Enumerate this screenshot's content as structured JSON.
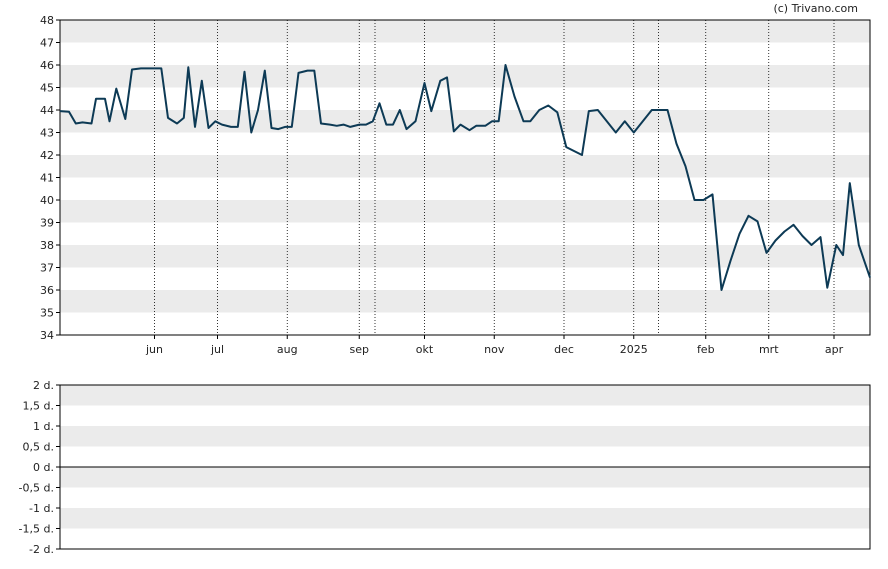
{
  "copyright": "(c) Trivano.com",
  "colors": {
    "line": "#0d3a55",
    "band": "#ebebeb",
    "axis": "#000000",
    "grid": "#000000"
  },
  "chart_data": [
    {
      "type": "line",
      "title": "",
      "xlabel": "",
      "ylabel": "",
      "ylim": [
        34,
        48
      ],
      "yticks": [
        "34",
        "35",
        "36",
        "37",
        "38",
        "39",
        "40",
        "41",
        "42",
        "43",
        "44",
        "45",
        "46",
        "47",
        "48"
      ],
      "xlim": [
        "2024-04-22",
        "2025-04-17"
      ],
      "x_tick_labels": [
        {
          "date": "2024-06-03",
          "label": "jun"
        },
        {
          "date": "2024-07-01",
          "label": "jul"
        },
        {
          "date": "2024-08-01",
          "label": "aug"
        },
        {
          "date": "2024-09-02",
          "label": "sep"
        },
        {
          "date": "2024-10-01",
          "label": "okt"
        },
        {
          "date": "2024-11-01",
          "label": "nov"
        },
        {
          "date": "2024-12-02",
          "label": "dec"
        },
        {
          "date": "2025-01-02",
          "label": "2025"
        },
        {
          "date": "2025-02-03",
          "label": "feb"
        },
        {
          "date": "2025-03-03",
          "label": "mrt"
        },
        {
          "date": "2025-04-01",
          "label": "apr"
        }
      ],
      "vlines": [
        "2024-06-03",
        "2024-07-01",
        "2024-08-01",
        "2024-09-02",
        "2024-09-09",
        "2024-10-01",
        "2024-11-01",
        "2024-12-02",
        "2025-01-02",
        "2025-01-13",
        "2025-02-03",
        "2025-03-03",
        "2025-04-01"
      ],
      "grid": "horizontal bands",
      "series": [
        {
          "points": [
            [
              "2024-04-22",
              43.95
            ],
            [
              "2024-04-26",
              43.92
            ],
            [
              "2024-04-29",
              43.4
            ],
            [
              "2024-05-02",
              43.45
            ],
            [
              "2024-05-06",
              43.4
            ],
            [
              "2024-05-08",
              44.5
            ],
            [
              "2024-05-12",
              44.5
            ],
            [
              "2024-05-14",
              43.5
            ],
            [
              "2024-05-17",
              44.95
            ],
            [
              "2024-05-21",
              43.6
            ],
            [
              "2024-05-24",
              45.8
            ],
            [
              "2024-05-28",
              45.85
            ],
            [
              "2024-05-31",
              45.85
            ],
            [
              "2024-06-03",
              45.85
            ],
            [
              "2024-06-06",
              45.85
            ],
            [
              "2024-06-09",
              43.65
            ],
            [
              "2024-06-13",
              43.4
            ],
            [
              "2024-06-16",
              43.65
            ],
            [
              "2024-06-18",
              45.9
            ],
            [
              "2024-06-21",
              43.25
            ],
            [
              "2024-06-24",
              45.3
            ],
            [
              "2024-06-27",
              43.2
            ],
            [
              "2024-06-30",
              43.5
            ],
            [
              "2024-07-03",
              43.35
            ],
            [
              "2024-07-07",
              43.25
            ],
            [
              "2024-07-10",
              43.25
            ],
            [
              "2024-07-13",
              45.7
            ],
            [
              "2024-07-16",
              43.0
            ],
            [
              "2024-07-19",
              44.0
            ],
            [
              "2024-07-22",
              45.75
            ],
            [
              "2024-07-25",
              43.2
            ],
            [
              "2024-07-28",
              43.15
            ],
            [
              "2024-07-31",
              43.25
            ],
            [
              "2024-08-03",
              43.25
            ],
            [
              "2024-08-06",
              45.65
            ],
            [
              "2024-08-10",
              45.75
            ],
            [
              "2024-08-13",
              45.75
            ],
            [
              "2024-08-16",
              43.4
            ],
            [
              "2024-08-20",
              43.35
            ],
            [
              "2024-08-23",
              43.3
            ],
            [
              "2024-08-26",
              43.35
            ],
            [
              "2024-08-29",
              43.25
            ],
            [
              "2024-09-02",
              43.35
            ],
            [
              "2024-09-05",
              43.35
            ],
            [
              "2024-09-08",
              43.5
            ],
            [
              "2024-09-11",
              44.3
            ],
            [
              "2024-09-14",
              43.35
            ],
            [
              "2024-09-17",
              43.35
            ],
            [
              "2024-09-20",
              44.0
            ],
            [
              "2024-09-23",
              43.15
            ],
            [
              "2024-09-27",
              43.5
            ],
            [
              "2024-10-01",
              45.2
            ],
            [
              "2024-10-04",
              43.95
            ],
            [
              "2024-10-08",
              45.3
            ],
            [
              "2024-10-11",
              45.45
            ],
            [
              "2024-10-14",
              43.05
            ],
            [
              "2024-10-17",
              43.35
            ],
            [
              "2024-10-21",
              43.1
            ],
            [
              "2024-10-24",
              43.3
            ],
            [
              "2024-10-28",
              43.3
            ],
            [
              "2024-10-31",
              43.5
            ],
            [
              "2024-11-03",
              43.5
            ],
            [
              "2024-11-06",
              46.0
            ],
            [
              "2024-11-10",
              44.6
            ],
            [
              "2024-11-14",
              43.5
            ],
            [
              "2024-11-17",
              43.5
            ],
            [
              "2024-11-21",
              44.0
            ],
            [
              "2024-11-25",
              44.2
            ],
            [
              "2024-11-29",
              43.9
            ],
            [
              "2024-12-03",
              42.35
            ],
            [
              "2024-12-06",
              42.2
            ],
            [
              "2024-12-10",
              42.0
            ],
            [
              "2024-12-13",
              43.95
            ],
            [
              "2024-12-17",
              44.0
            ],
            [
              "2024-12-21",
              43.5
            ],
            [
              "2024-12-25",
              43.0
            ],
            [
              "2024-12-29",
              43.5
            ],
            [
              "2025-01-02",
              43.0
            ],
            [
              "2025-01-06",
              43.5
            ],
            [
              "2025-01-10",
              44.0
            ],
            [
              "2025-01-14",
              44.0
            ],
            [
              "2025-01-17",
              44.0
            ],
            [
              "2025-01-21",
              42.5
            ],
            [
              "2025-01-25",
              41.5
            ],
            [
              "2025-01-29",
              40.0
            ],
            [
              "2025-02-02",
              40.0
            ],
            [
              "2025-02-06",
              40.25
            ],
            [
              "2025-02-10",
              36.0
            ],
            [
              "2025-02-14",
              37.3
            ],
            [
              "2025-02-18",
              38.5
            ],
            [
              "2025-02-22",
              39.3
            ],
            [
              "2025-02-26",
              39.05
            ],
            [
              "2025-03-02",
              37.65
            ],
            [
              "2025-03-06",
              38.2
            ],
            [
              "2025-03-10",
              38.6
            ],
            [
              "2025-03-14",
              38.9
            ],
            [
              "2025-03-18",
              38.4
            ],
            [
              "2025-03-22",
              38.0
            ],
            [
              "2025-03-26",
              38.35
            ],
            [
              "2025-03-29",
              36.1
            ],
            [
              "2025-04-02",
              38.0
            ],
            [
              "2025-04-05",
              37.55
            ],
            [
              "2025-04-08",
              40.75
            ],
            [
              "2025-04-12",
              38.0
            ],
            [
              "2025-04-17",
              36.55
            ]
          ]
        }
      ]
    },
    {
      "type": "line",
      "title": "",
      "ylim": [
        -2,
        2
      ],
      "yticks": [
        "2 d.",
        "1,5 d.",
        "1 d.",
        "0,5 d.",
        "0 d.",
        "-0,5 d.",
        "-1 d.",
        "-1,5 d.",
        "-2 d."
      ],
      "zero_line": "0 d.",
      "grid": "horizontal bands",
      "series": []
    }
  ]
}
